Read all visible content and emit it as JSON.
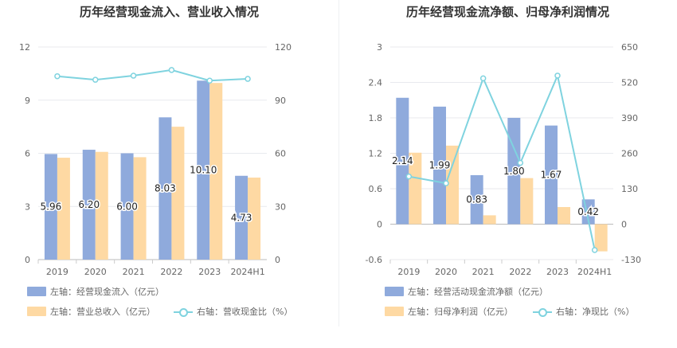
{
  "colors": {
    "blue": "#8faadc",
    "orange": "#fed9a3",
    "cyan": "#7fd3df",
    "grid": "#e8eaee",
    "axis": "#666666"
  },
  "chart_data": [
    {
      "type": "bar",
      "title": "历年经营现金流入、营业收入情况",
      "categories": [
        "2019",
        "2020",
        "2021",
        "2022",
        "2023",
        "2024H1"
      ],
      "left_axis": {
        "ticks": [
          "0",
          "3",
          "6",
          "9",
          "12"
        ],
        "ylim": [
          0,
          12
        ]
      },
      "right_axis": {
        "ticks": [
          "0",
          "30",
          "60",
          "90",
          "120"
        ],
        "ylim": [
          0,
          120
        ]
      },
      "series": [
        {
          "name": "左轴：经营现金流入（亿元）",
          "axis": "left",
          "kind": "bar",
          "values": [
            5.96,
            6.2,
            6.0,
            8.03,
            10.1,
            4.73
          ],
          "labels": [
            "5.96",
            "6.20",
            "6.00",
            "8.03",
            "10.10",
            "4.73"
          ]
        },
        {
          "name": "左轴：营业总收入（亿元）",
          "axis": "left",
          "kind": "bar",
          "values": [
            5.75,
            6.08,
            5.78,
            7.5,
            9.97,
            4.63
          ]
        },
        {
          "name": "右轴：营收现金比（%）",
          "axis": "right",
          "kind": "line",
          "values": [
            103.5,
            101.5,
            103.8,
            107.0,
            101.0,
            102.0
          ]
        }
      ]
    },
    {
      "type": "bar",
      "title": "历年经营现金流净额、归母净利润情况",
      "categories": [
        "2019",
        "2020",
        "2021",
        "2022",
        "2023",
        "2024H1"
      ],
      "left_axis": {
        "ticks": [
          "-0.6",
          "0",
          "0.6",
          "1.2",
          "1.8",
          "2.4",
          "3"
        ],
        "ylim": [
          -0.6,
          3
        ]
      },
      "right_axis": {
        "ticks": [
          "-130",
          "0",
          "130",
          "260",
          "390",
          "520",
          "650"
        ],
        "ylim": [
          -130,
          650
        ]
      },
      "series": [
        {
          "name": "左轴：经营活动现金流净额（亿元）",
          "axis": "left",
          "kind": "bar",
          "values": [
            2.14,
            1.99,
            0.83,
            1.8,
            1.67,
            0.42
          ],
          "labels": [
            "2.14",
            "1.99",
            "0.83",
            "1.80",
            "1.67",
            "0.42"
          ]
        },
        {
          "name": "左轴：归母净利润（亿元）",
          "axis": "left",
          "kind": "bar",
          "values": [
            1.21,
            1.33,
            0.15,
            0.78,
            0.29,
            -0.46
          ]
        },
        {
          "name": "右轴：净现比（%）",
          "axis": "right",
          "kind": "line",
          "values": [
            175,
            150,
            535,
            225,
            545,
            -95
          ]
        }
      ]
    }
  ]
}
